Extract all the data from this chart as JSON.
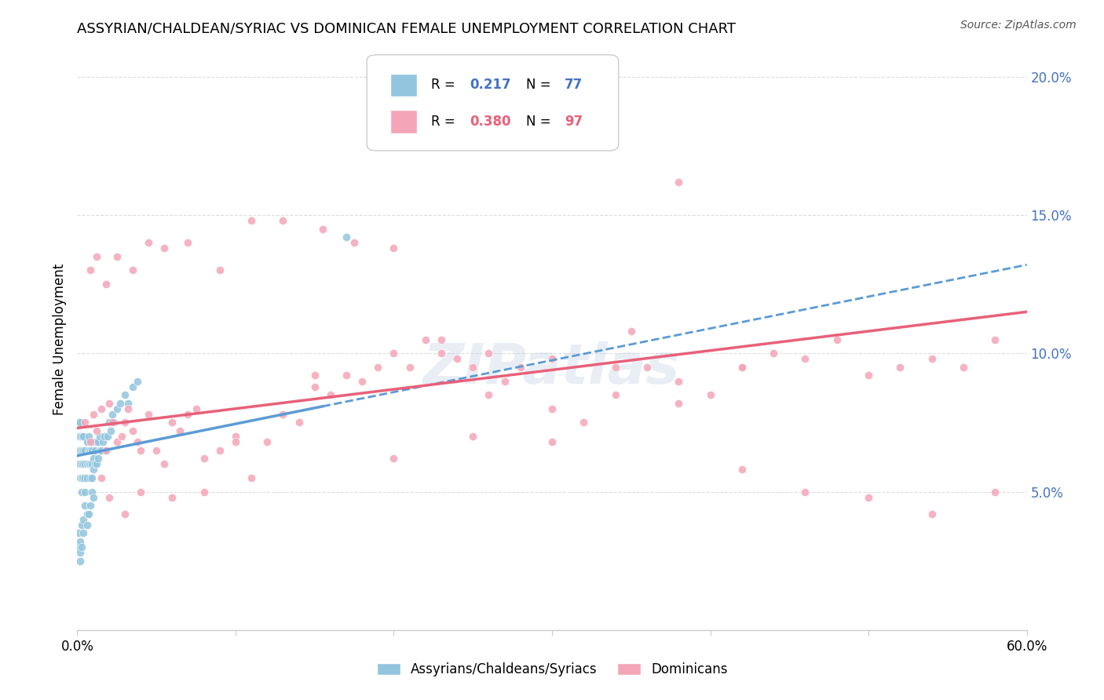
{
  "title": "ASSYRIAN/CHALDEAN/SYRIAC VS DOMINICAN FEMALE UNEMPLOYMENT CORRELATION CHART",
  "source": "Source: ZipAtlas.com",
  "ylabel": "Female Unemployment",
  "color_blue": "#92C5DE",
  "color_pink": "#F4A5B8",
  "color_blue_line": "#5B9BD5",
  "color_pink_line": "#E8607A",
  "watermark": "ZIPatlas",
  "blue_x": [
    0.001,
    0.001,
    0.001,
    0.001,
    0.002,
    0.002,
    0.002,
    0.002,
    0.002,
    0.003,
    0.003,
    0.003,
    0.003,
    0.003,
    0.004,
    0.004,
    0.004,
    0.004,
    0.005,
    0.005,
    0.005,
    0.005,
    0.006,
    0.006,
    0.006,
    0.007,
    0.007,
    0.007,
    0.008,
    0.008,
    0.008,
    0.009,
    0.009,
    0.009,
    0.01,
    0.01,
    0.01,
    0.011,
    0.011,
    0.012,
    0.012,
    0.013,
    0.013,
    0.014,
    0.014,
    0.015,
    0.016,
    0.017,
    0.018,
    0.019,
    0.02,
    0.021,
    0.022,
    0.023,
    0.025,
    0.027,
    0.03,
    0.032,
    0.035,
    0.038,
    0.001,
    0.001,
    0.002,
    0.002,
    0.002,
    0.003,
    0.003,
    0.004,
    0.004,
    0.005,
    0.006,
    0.006,
    0.007,
    0.008,
    0.009,
    0.01,
    0.17
  ],
  "blue_y": [
    0.06,
    0.065,
    0.07,
    0.075,
    0.055,
    0.06,
    0.065,
    0.07,
    0.075,
    0.05,
    0.055,
    0.06,
    0.065,
    0.07,
    0.055,
    0.06,
    0.065,
    0.07,
    0.05,
    0.055,
    0.06,
    0.065,
    0.055,
    0.06,
    0.068,
    0.06,
    0.065,
    0.07,
    0.055,
    0.06,
    0.065,
    0.055,
    0.06,
    0.065,
    0.058,
    0.062,
    0.068,
    0.06,
    0.065,
    0.06,
    0.068,
    0.062,
    0.068,
    0.065,
    0.07,
    0.065,
    0.068,
    0.07,
    0.065,
    0.07,
    0.075,
    0.072,
    0.078,
    0.075,
    0.08,
    0.082,
    0.085,
    0.082,
    0.088,
    0.09,
    0.03,
    0.035,
    0.028,
    0.032,
    0.025,
    0.038,
    0.03,
    0.035,
    0.04,
    0.045,
    0.038,
    0.042,
    0.042,
    0.045,
    0.05,
    0.048,
    0.142
  ],
  "pink_x": [
    0.005,
    0.008,
    0.01,
    0.012,
    0.015,
    0.018,
    0.02,
    0.022,
    0.025,
    0.028,
    0.03,
    0.032,
    0.035,
    0.038,
    0.04,
    0.045,
    0.05,
    0.055,
    0.06,
    0.065,
    0.07,
    0.075,
    0.08,
    0.09,
    0.1,
    0.11,
    0.12,
    0.13,
    0.14,
    0.15,
    0.16,
    0.17,
    0.18,
    0.19,
    0.2,
    0.21,
    0.22,
    0.23,
    0.24,
    0.25,
    0.26,
    0.27,
    0.28,
    0.3,
    0.32,
    0.34,
    0.36,
    0.38,
    0.4,
    0.42,
    0.44,
    0.46,
    0.48,
    0.5,
    0.52,
    0.54,
    0.56,
    0.58,
    0.008,
    0.012,
    0.018,
    0.025,
    0.035,
    0.045,
    0.055,
    0.07,
    0.09,
    0.11,
    0.13,
    0.155,
    0.175,
    0.2,
    0.23,
    0.26,
    0.3,
    0.34,
    0.38,
    0.42,
    0.46,
    0.5,
    0.54,
    0.58,
    0.35,
    0.3,
    0.25,
    0.2,
    0.15,
    0.1,
    0.08,
    0.06,
    0.04,
    0.03,
    0.02,
    0.015,
    0.38,
    0.42
  ],
  "pink_y": [
    0.075,
    0.068,
    0.078,
    0.072,
    0.08,
    0.065,
    0.082,
    0.075,
    0.068,
    0.07,
    0.075,
    0.08,
    0.072,
    0.068,
    0.065,
    0.078,
    0.065,
    0.06,
    0.075,
    0.072,
    0.078,
    0.08,
    0.062,
    0.065,
    0.07,
    0.055,
    0.068,
    0.078,
    0.075,
    0.088,
    0.085,
    0.092,
    0.09,
    0.095,
    0.1,
    0.095,
    0.105,
    0.1,
    0.098,
    0.095,
    0.085,
    0.09,
    0.095,
    0.08,
    0.075,
    0.085,
    0.095,
    0.09,
    0.085,
    0.095,
    0.1,
    0.098,
    0.105,
    0.092,
    0.095,
    0.098,
    0.095,
    0.105,
    0.13,
    0.135,
    0.125,
    0.135,
    0.13,
    0.14,
    0.138,
    0.14,
    0.13,
    0.148,
    0.148,
    0.145,
    0.14,
    0.138,
    0.105,
    0.1,
    0.098,
    0.095,
    0.082,
    0.058,
    0.05,
    0.048,
    0.042,
    0.05,
    0.108,
    0.068,
    0.07,
    0.062,
    0.092,
    0.068,
    0.05,
    0.048,
    0.05,
    0.042,
    0.048,
    0.055,
    0.162,
    0.095
  ]
}
